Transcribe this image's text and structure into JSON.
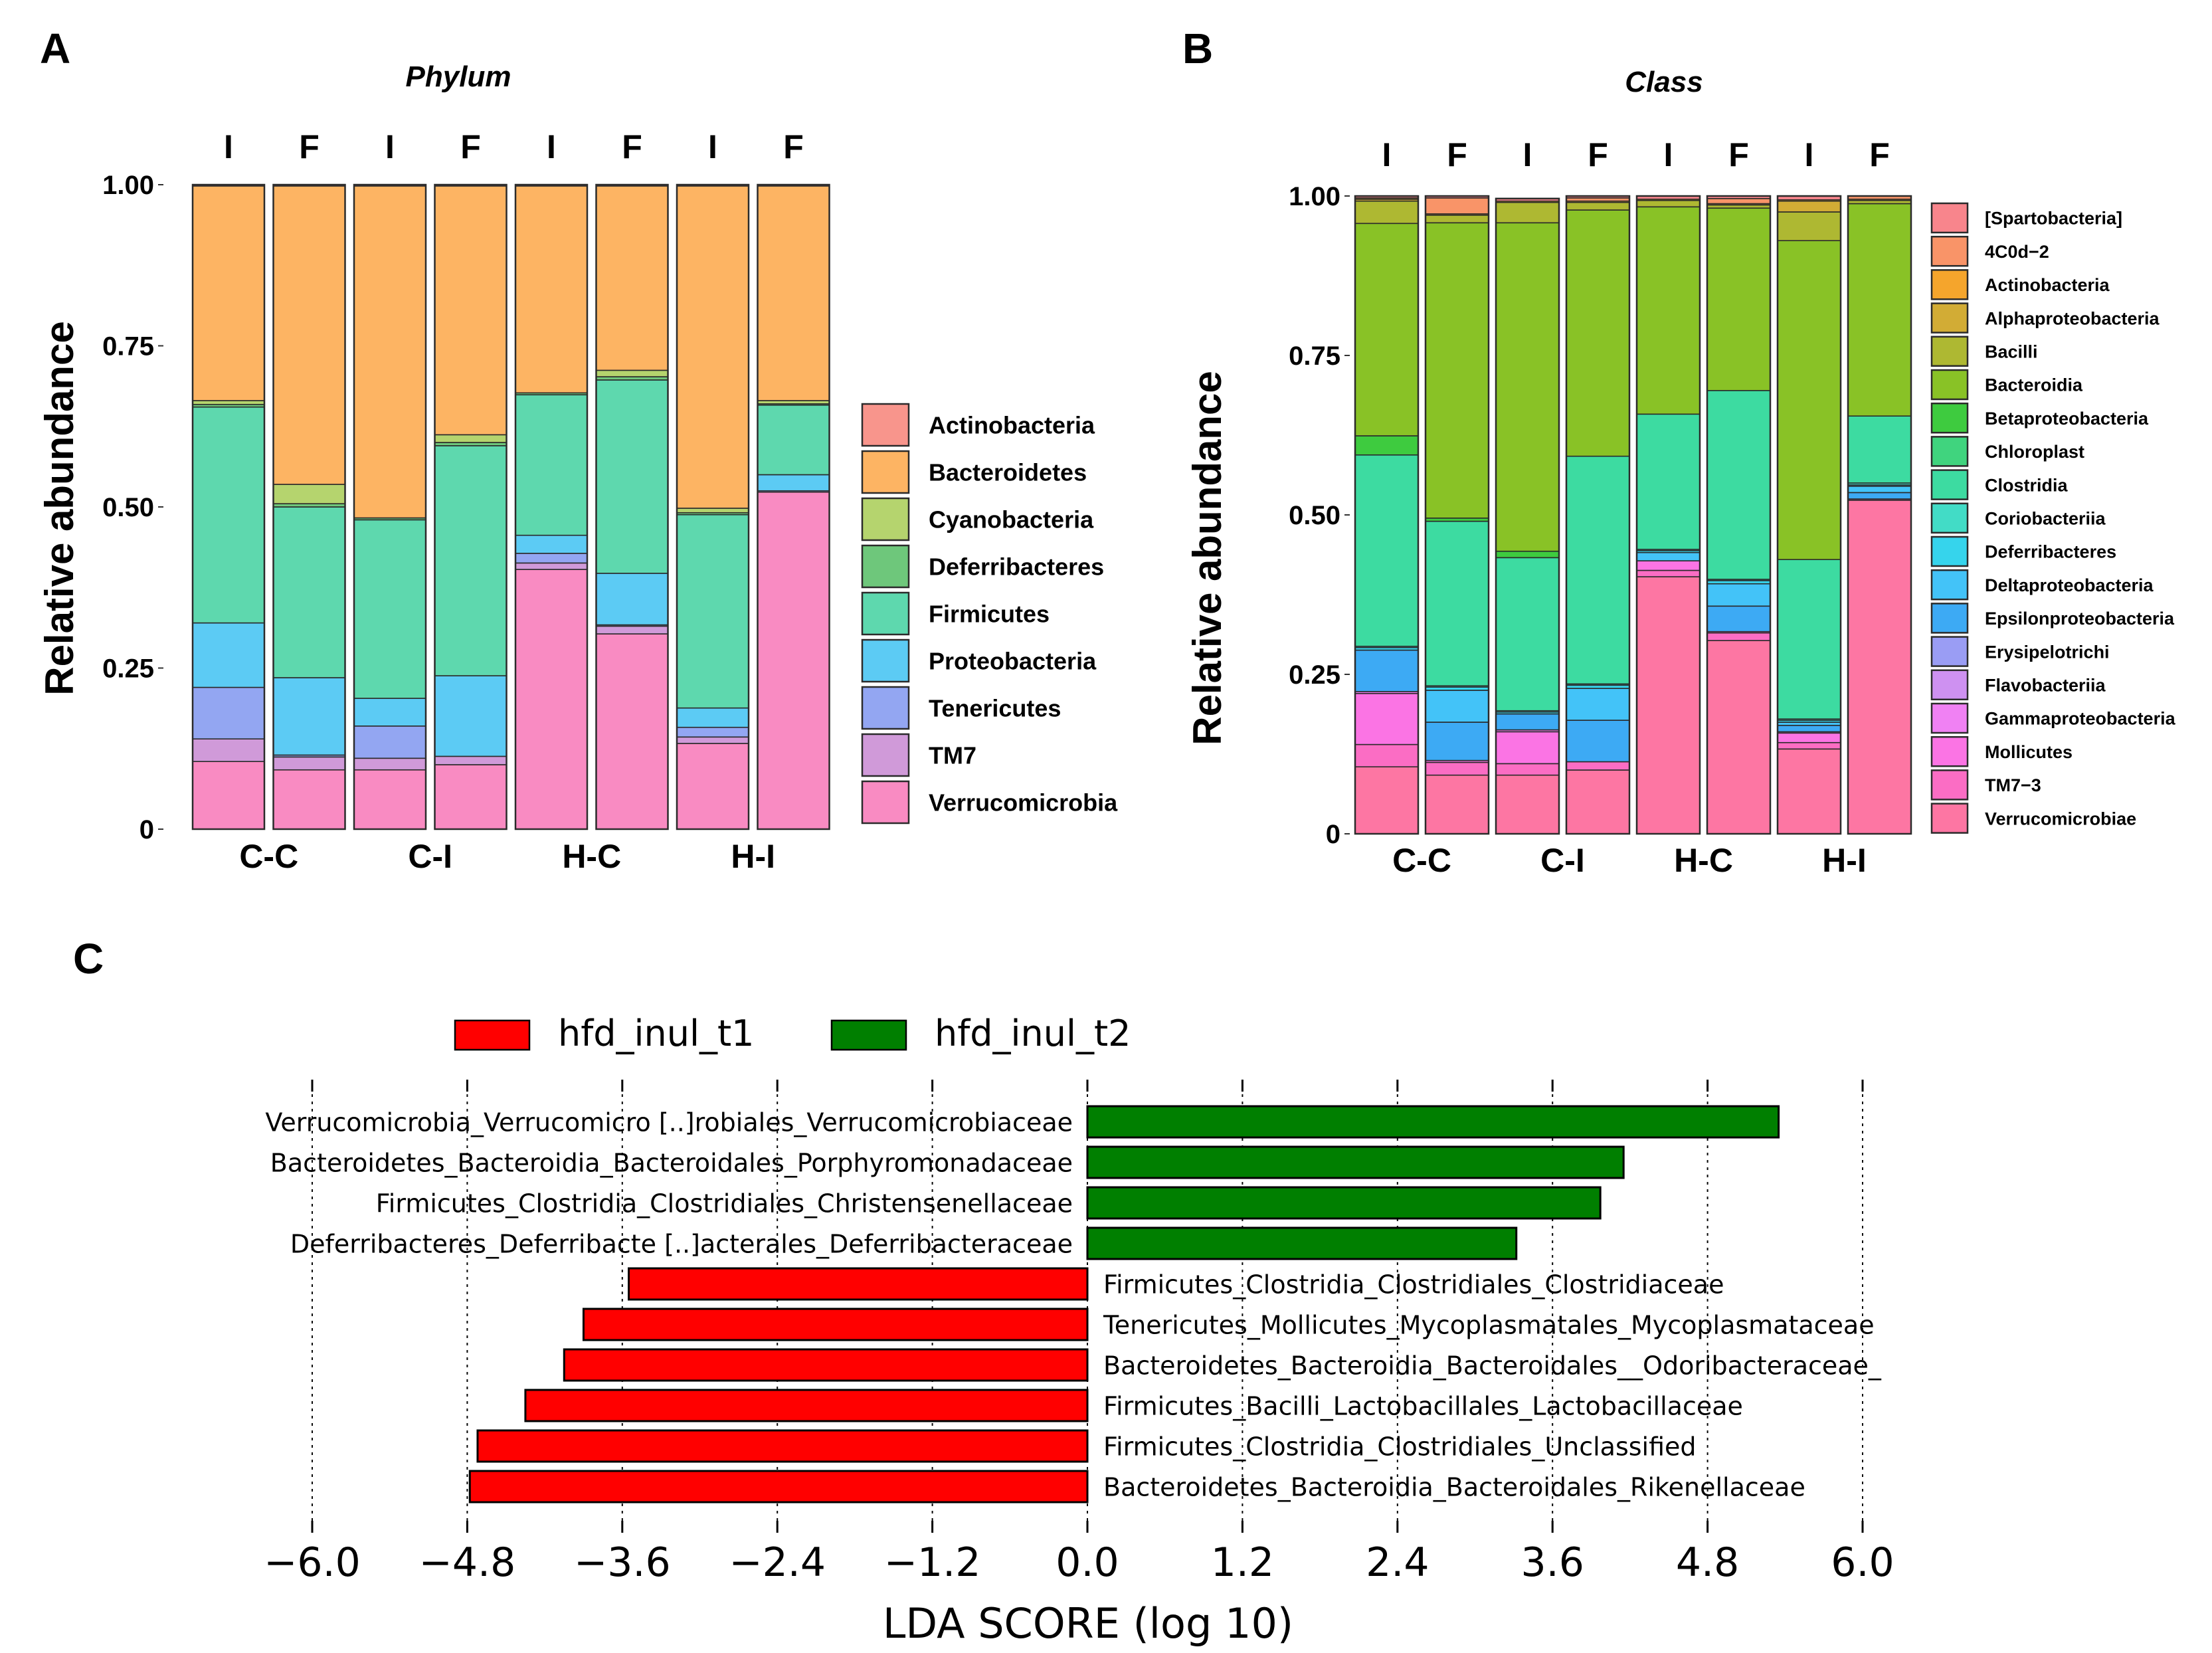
{
  "panels": {
    "a": "A",
    "b": "B",
    "c": "C"
  },
  "chart_data": [
    {
      "id": "phylum",
      "type": "bar",
      "stacked": true,
      "title": "Phylum",
      "ylabel": "Relative abundance",
      "ylim": [
        0,
        1
      ],
      "yticks": [
        "0",
        "0.25",
        "0.50",
        "0.75",
        "1.00"
      ],
      "bar_labels": [
        "I",
        "F",
        "I",
        "F",
        "I",
        "F",
        "I",
        "F"
      ],
      "groups": [
        "C-C",
        "C-I",
        "H-C",
        "H-I"
      ],
      "legend": [
        "Actinobacteria",
        "Bacteroidetes",
        "Cyanobacteria",
        "Deferribacteres",
        "Firmicutes",
        "Proteobacteria",
        "Tenericutes",
        "TM7",
        "Verrucomicrobia"
      ],
      "colors": [
        "#F8958C",
        "#FDB463",
        "#B5D46E",
        "#6EC77B",
        "#5ED8AE",
        "#5CCBF4",
        "#93A6F2",
        "#D09AD9",
        "#F98BC2"
      ],
      "stack_order": [
        "Verrucomicrobia",
        "TM7",
        "Tenericutes",
        "Proteobacteria",
        "Firmicutes",
        "Deferribacteres",
        "Cyanobacteria",
        "Bacteroidetes",
        "Actinobacteria"
      ],
      "bars": [
        {
          "Verrucomicrobia": 0.105,
          "TM7": 0.035,
          "Tenericutes": 0.08,
          "Proteobacteria": 0.1,
          "Firmicutes": 0.335,
          "Deferribacteres": 0.004,
          "Cyanobacteria": 0.006,
          "Bacteroidetes": 0.333,
          "Actinobacteria": 0.002
        },
        {
          "Verrucomicrobia": 0.092,
          "TM7": 0.02,
          "Tenericutes": 0.003,
          "Proteobacteria": 0.12,
          "Firmicutes": 0.265,
          "Deferribacteres": 0.005,
          "Cyanobacteria": 0.03,
          "Bacteroidetes": 0.463,
          "Actinobacteria": 0.002
        },
        {
          "Verrucomicrobia": 0.092,
          "TM7": 0.018,
          "Tenericutes": 0.05,
          "Proteobacteria": 0.043,
          "Firmicutes": 0.277,
          "Deferribacteres": 0.003,
          "Cyanobacteria": 0.0,
          "Bacteroidetes": 0.515,
          "Actinobacteria": 0.002
        },
        {
          "Verrucomicrobia": 0.1,
          "TM7": 0.013,
          "Tenericutes": 0.0,
          "Proteobacteria": 0.125,
          "Firmicutes": 0.357,
          "Deferribacteres": 0.005,
          "Cyanobacteria": 0.012,
          "Bacteroidetes": 0.386,
          "Actinobacteria": 0.002
        },
        {
          "Verrucomicrobia": 0.403,
          "TM7": 0.01,
          "Tenericutes": 0.015,
          "Proteobacteria": 0.028,
          "Firmicutes": 0.218,
          "Deferribacteres": 0.003,
          "Cyanobacteria": 0.0,
          "Bacteroidetes": 0.321,
          "Actinobacteria": 0.002
        },
        {
          "Verrucomicrobia": 0.303,
          "TM7": 0.012,
          "Tenericutes": 0.002,
          "Proteobacteria": 0.08,
          "Firmicutes": 0.3,
          "Deferribacteres": 0.005,
          "Cyanobacteria": 0.01,
          "Bacteroidetes": 0.286,
          "Actinobacteria": 0.002
        },
        {
          "Verrucomicrobia": 0.133,
          "TM7": 0.01,
          "Tenericutes": 0.015,
          "Proteobacteria": 0.03,
          "Firmicutes": 0.3,
          "Deferribacteres": 0.003,
          "Cyanobacteria": 0.007,
          "Bacteroidetes": 0.5,
          "Actinobacteria": 0.002
        },
        {
          "Verrucomicrobia": 0.523,
          "TM7": 0.0,
          "Tenericutes": 0.002,
          "Proteobacteria": 0.025,
          "Firmicutes": 0.108,
          "Deferribacteres": 0.002,
          "Cyanobacteria": 0.005,
          "Bacteroidetes": 0.333,
          "Actinobacteria": 0.002
        }
      ]
    },
    {
      "id": "class",
      "type": "bar",
      "stacked": true,
      "title": "Class",
      "ylabel": "Relative abundance",
      "ylim": [
        0,
        1
      ],
      "yticks": [
        "0",
        "0.25",
        "0.50",
        "0.75",
        "1.00"
      ],
      "bar_labels": [
        "I",
        "F",
        "I",
        "F",
        "I",
        "F",
        "I",
        "F"
      ],
      "groups": [
        "C-C",
        "C-I",
        "H-C",
        "H-I"
      ],
      "legend": [
        "[Spartobacteria]",
        "4C0d−2",
        "Actinobacteria",
        "Alphaproteobacteria",
        "Bacilli",
        "Bacteroidia",
        "Betaproteobacteria",
        "Chloroplast",
        "Clostridia",
        "Coriobacteriia",
        "Deferribacteres",
        "Deltaproteobacteria",
        "Epsilonproteobacteria",
        "Erysipelotrichi",
        "Flavobacteriia",
        "Gammaproteobacteria",
        "Mollicutes",
        "TM7−3",
        "Verrucomicrobiae"
      ],
      "colors": [
        "#F8858C",
        "#F99468",
        "#F5A52C",
        "#D2AC35",
        "#AEB832",
        "#89C226",
        "#3ECB3F",
        "#40D47E",
        "#3DDBA1",
        "#42DCC6",
        "#36D4EC",
        "#43C3F8",
        "#3DAAF4",
        "#9A9DF4",
        "#CE91F1",
        "#F081F3",
        "#FB74E4",
        "#FB6DC4",
        "#FD76A3"
      ],
      "stack_order": [
        "Verrucomicrobiae",
        "TM7−3",
        "Mollicutes",
        "Gammaproteobacteria",
        "Flavobacteriia",
        "Erysipelotrichi",
        "Epsilonproteobacteria",
        "Deltaproteobacteria",
        "Deferribacteres",
        "Coriobacteriia",
        "Clostridia",
        "Chloroplast",
        "Betaproteobacteria",
        "Bacteroidia",
        "Bacilli",
        "Alphaproteobacteria",
        "Actinobacteria",
        "4C0d−2",
        "[Spartobacteria]"
      ],
      "bars": [
        {
          "Verrucomicrobiae": 0.105,
          "TM7−3": 0.035,
          "Mollicutes": 0.08,
          "Gammaproteobacteria": 0.003,
          "Flavobacteriia": 0.0,
          "Erysipelotrichi": 0.0,
          "Epsilonproteobacteria": 0.065,
          "Deltaproteobacteria": 0.0,
          "Deferribacteres": 0.004,
          "Coriobacteriia": 0.002,
          "Clostridia": 0.3,
          "Chloroplast": 0.0,
          "Betaproteobacteria": 0.03,
          "Bacteroidia": 0.333,
          "Bacilli": 0.035,
          "Alphaproteobacteria": 0.003,
          "Actinobacteria": 0.002,
          "4C0d−2": 0.0,
          "[Spartobacteria]": 0.003
        },
        {
          "Verrucomicrobiae": 0.092,
          "TM7−3": 0.02,
          "Mollicutes": 0.003,
          "Gammaproteobacteria": 0.0,
          "Flavobacteriia": 0.0,
          "Erysipelotrichi": 0.0,
          "Epsilonproteobacteria": 0.06,
          "Deltaproteobacteria": 0.05,
          "Deferribacteres": 0.005,
          "Coriobacteriia": 0.002,
          "Clostridia": 0.258,
          "Chloroplast": 0.0,
          "Betaproteobacteria": 0.005,
          "Bacteroidia": 0.463,
          "Bacilli": 0.012,
          "Alphaproteobacteria": 0.0,
          "Actinobacteria": 0.002,
          "4C0d−2": 0.025,
          "[Spartobacteria]": 0.003
        },
        {
          "Verrucomicrobiae": 0.092,
          "TM7−3": 0.018,
          "Mollicutes": 0.05,
          "Gammaproteobacteria": 0.003,
          "Flavobacteriia": 0.0,
          "Erysipelotrichi": 0.0,
          "Epsilonproteobacteria": 0.025,
          "Deltaproteobacteria": 0.0,
          "Deferribacteres": 0.003,
          "Coriobacteriia": 0.002,
          "Clostridia": 0.24,
          "Chloroplast": 0.0,
          "Betaproteobacteria": 0.01,
          "Bacteroidia": 0.515,
          "Bacilli": 0.032,
          "Alphaproteobacteria": 0.0,
          "Actinobacteria": 0.002,
          "4C0d−2": 0.0,
          "[Spartobacteria]": 0.004
        },
        {
          "Verrucomicrobiae": 0.1,
          "TM7−3": 0.013,
          "Mollicutes": 0.0,
          "Gammaproteobacteria": 0.0,
          "Flavobacteriia": 0.0,
          "Erysipelotrichi": 0.0,
          "Epsilonproteobacteria": 0.065,
          "Deltaproteobacteria": 0.05,
          "Deferribacteres": 0.005,
          "Coriobacteriia": 0.002,
          "Clostridia": 0.357,
          "Chloroplast": 0.0,
          "Betaproteobacteria": 0.0,
          "Bacteroidia": 0.386,
          "Bacilli": 0.012,
          "Alphaproteobacteria": 0.0,
          "Actinobacteria": 0.002,
          "4C0d−2": 0.005,
          "[Spartobacteria]": 0.003
        },
        {
          "Verrucomicrobiae": 0.403,
          "TM7−3": 0.01,
          "Mollicutes": 0.015,
          "Gammaproteobacteria": 0.0,
          "Flavobacteriia": 0.0,
          "Erysipelotrichi": 0.0,
          "Epsilonproteobacteria": 0.0,
          "Deltaproteobacteria": 0.013,
          "Deferribacteres": 0.003,
          "Coriobacteriia": 0.002,
          "Clostridia": 0.212,
          "Chloroplast": 0.0,
          "Betaproteobacteria": 0.0,
          "Bacteroidia": 0.325,
          "Bacilli": 0.01,
          "Alphaproteobacteria": 0.0,
          "Actinobacteria": 0.002,
          "4C0d−2": 0.0,
          "[Spartobacteria]": 0.005
        },
        {
          "Verrucomicrobiae": 0.303,
          "TM7−3": 0.012,
          "Mollicutes": 0.002,
          "Gammaproteobacteria": 0.0,
          "Flavobacteriia": 0.0,
          "Erysipelotrichi": 0.0,
          "Epsilonproteobacteria": 0.04,
          "Deltaproteobacteria": 0.035,
          "Deferribacteres": 0.005,
          "Coriobacteriia": 0.002,
          "Clostridia": 0.296,
          "Chloroplast": 0.0,
          "Betaproteobacteria": 0.0,
          "Bacteroidia": 0.286,
          "Bacilli": 0.005,
          "Alphaproteobacteria": 0.0,
          "Actinobacteria": 0.002,
          "4C0d−2": 0.008,
          "[Spartobacteria]": 0.004
        },
        {
          "Verrucomicrobiae": 0.133,
          "TM7−3": 0.01,
          "Mollicutes": 0.015,
          "Gammaproteobacteria": 0.002,
          "Flavobacteriia": 0.0,
          "Erysipelotrichi": 0.0,
          "Epsilonproteobacteria": 0.01,
          "Deltaproteobacteria": 0.005,
          "Deferribacteres": 0.003,
          "Coriobacteriia": 0.002,
          "Clostridia": 0.25,
          "Chloroplast": 0.0,
          "Betaproteobacteria": 0.0,
          "Bacteroidia": 0.5,
          "Bacilli": 0.045,
          "Alphaproteobacteria": 0.017,
          "Actinobacteria": 0.002,
          "4C0d−2": 0.0,
          "[Spartobacteria]": 0.006
        },
        {
          "Verrucomicrobiae": 0.523,
          "TM7−3": 0.0,
          "Mollicutes": 0.002,
          "Gammaproteobacteria": 0.0,
          "Flavobacteriia": 0.0,
          "Erysipelotrichi": 0.0,
          "Epsilonproteobacteria": 0.01,
          "Deltaproteobacteria": 0.01,
          "Deferribacteres": 0.002,
          "Coriobacteriia": 0.003,
          "Clostridia": 0.105,
          "Chloroplast": 0.0,
          "Betaproteobacteria": 0.0,
          "Bacteroidia": 0.333,
          "Bacilli": 0.005,
          "Alphaproteobacteria": 0.0,
          "Actinobacteria": 0.002,
          "4C0d−2": 0.005,
          "[Spartobacteria]": 0.0
        }
      ]
    },
    {
      "id": "lefse",
      "type": "bar",
      "orientation": "horizontal",
      "xlabel": "LDA SCORE (log 10)",
      "xlim": [
        -6.0,
        6.0
      ],
      "xticks": [
        "−6.0",
        "−4.8",
        "−3.6",
        "−2.4",
        "−1.2",
        "0.0",
        "1.2",
        "2.4",
        "3.6",
        "4.8",
        "6.0"
      ],
      "legend": [
        {
          "name": "hfd_inul_t1",
          "color": "#FF0000"
        },
        {
          "name": "hfd_inul_t2",
          "color": "#007F00"
        }
      ],
      "bars": [
        {
          "label": "Verrucomicrobia_Verrucomicro [..]robiales_Verrucomicrobiaceae",
          "value": 5.35,
          "group": "hfd_inul_t2"
        },
        {
          "label": "Bacteroidetes_Bacteroidia_Bacteroidales_Porphyromonadaceae",
          "value": 4.15,
          "group": "hfd_inul_t2"
        },
        {
          "label": "Firmicutes_Clostridia_Clostridiales_Christensenellaceae",
          "value": 3.97,
          "group": "hfd_inul_t2"
        },
        {
          "label": "Deferribacteres_Deferribacte [..]acterales_Deferribacteraceae",
          "value": 3.32,
          "group": "hfd_inul_t2"
        },
        {
          "label": "Firmicutes_Clostridia_Clostridiales_Clostridiaceae",
          "value": -3.55,
          "group": "hfd_inul_t1"
        },
        {
          "label": "Tenericutes_Mollicutes_Mycoplasmatales_Mycoplasmataceae",
          "value": -3.9,
          "group": "hfd_inul_t1"
        },
        {
          "label": "Bacteroidetes_Bacteroidia_Bacteroidales__Odoribacteraceae_",
          "value": -4.05,
          "group": "hfd_inul_t1"
        },
        {
          "label": "Firmicutes_Bacilli_Lactobacillales_Lactobacillaceae",
          "value": -4.35,
          "group": "hfd_inul_t1"
        },
        {
          "label": "Firmicutes_Clostridia_Clostridiales_Unclassified",
          "value": -4.72,
          "group": "hfd_inul_t1"
        },
        {
          "label": "Bacteroidetes_Bacteroidia_Bacteroidales_Rikenellaceae",
          "value": -4.78,
          "group": "hfd_inul_t1"
        }
      ]
    }
  ]
}
